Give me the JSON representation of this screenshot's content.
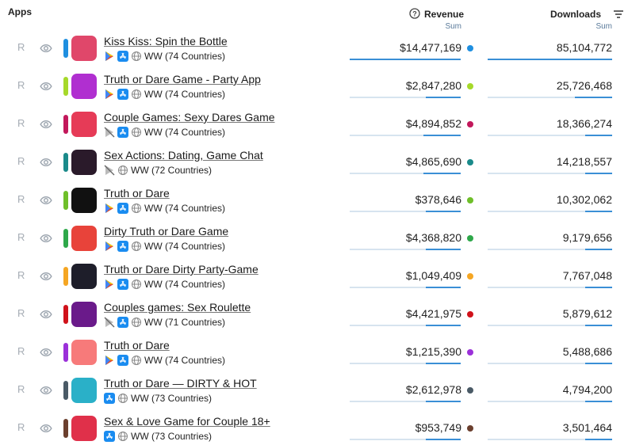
{
  "header": {
    "apps": "Apps",
    "revenue": "Revenue",
    "revenue_sub": "Sum",
    "downloads": "Downloads",
    "downloads_sub": "Sum"
  },
  "rows": [
    {
      "r": "R",
      "name": "Kiss Kiss: Spin the Bottle",
      "stores": [
        "google_play",
        "app_store"
      ],
      "region": "WW (74 Countries)",
      "revenue": "$14,477,169",
      "downloads": "85,104,772",
      "color": "#1f8fe0",
      "icon_color": "#e0476a"
    },
    {
      "r": "R",
      "name": "Truth or Dare Game - Party App",
      "stores": [
        "google_play",
        "app_store"
      ],
      "region": "WW (74 Countries)",
      "revenue": "$2,847,280",
      "downloads": "25,726,468",
      "color": "#a6d92a",
      "icon_color": "#b02fd0"
    },
    {
      "r": "R",
      "name": "Couple Games: Sexy Dares Game",
      "stores": [
        "google_play_off",
        "app_store"
      ],
      "region": "WW (74 Countries)",
      "revenue": "$4,894,852",
      "downloads": "18,366,274",
      "color": "#c2185b",
      "icon_color": "#e63b57"
    },
    {
      "r": "R",
      "name": "Sex Actions: Dating, Game Chat",
      "stores": [
        "google_play_off"
      ],
      "region": "WW (72 Countries)",
      "revenue": "$4,865,690",
      "downloads": "14,218,557",
      "color": "#1a8a8a",
      "icon_color": "#2a1a2a"
    },
    {
      "r": "R",
      "name": "Truth or Dare",
      "stores": [
        "google_play",
        "app_store"
      ],
      "region": "WW (74 Countries)",
      "revenue": "$378,646",
      "downloads": "10,302,062",
      "color": "#6fbf2a",
      "icon_color": "#111111"
    },
    {
      "r": "R",
      "name": "Dirty Truth or Dare Game",
      "stores": [
        "google_play",
        "app_store"
      ],
      "region": "WW (74 Countries)",
      "revenue": "$4,368,820",
      "downloads": "9,179,656",
      "color": "#2ea84a",
      "icon_color": "#e8433a"
    },
    {
      "r": "R",
      "name": "Truth or Dare Dirty Party-Game",
      "stores": [
        "google_play",
        "app_store"
      ],
      "region": "WW (74 Countries)",
      "revenue": "$1,049,409",
      "downloads": "7,767,048",
      "color": "#f5a623",
      "icon_color": "#1e1e2a"
    },
    {
      "r": "R",
      "name": "Couples games: Sex Roulette",
      "stores": [
        "google_play_off",
        "app_store"
      ],
      "region": "WW (71 Countries)",
      "revenue": "$4,421,975",
      "downloads": "5,879,612",
      "color": "#d0121b",
      "icon_color": "#6a1a8a"
    },
    {
      "r": "R",
      "name": "Truth or Dare",
      "stores": [
        "google_play",
        "app_store"
      ],
      "region": "WW (74 Countries)",
      "revenue": "$1,215,390",
      "downloads": "5,488,686",
      "color": "#9b30d9",
      "icon_color": "#f77a7a"
    },
    {
      "r": "R",
      "name": "Truth or Dare — DIRTY & HOT",
      "stores": [
        "app_store"
      ],
      "region": "WW (73 Countries)",
      "revenue": "$2,612,978",
      "downloads": "4,794,200",
      "color": "#4a5a66",
      "icon_color": "#2ab0c8"
    },
    {
      "r": "R",
      "name": "Sex & Love Game for Couple 18+",
      "stores": [
        "app_store"
      ],
      "region": "WW (73 Countries)",
      "revenue": "$953,749",
      "downloads": "3,501,464",
      "color": "#6b3f2e",
      "icon_color": "#e0304a"
    }
  ]
}
